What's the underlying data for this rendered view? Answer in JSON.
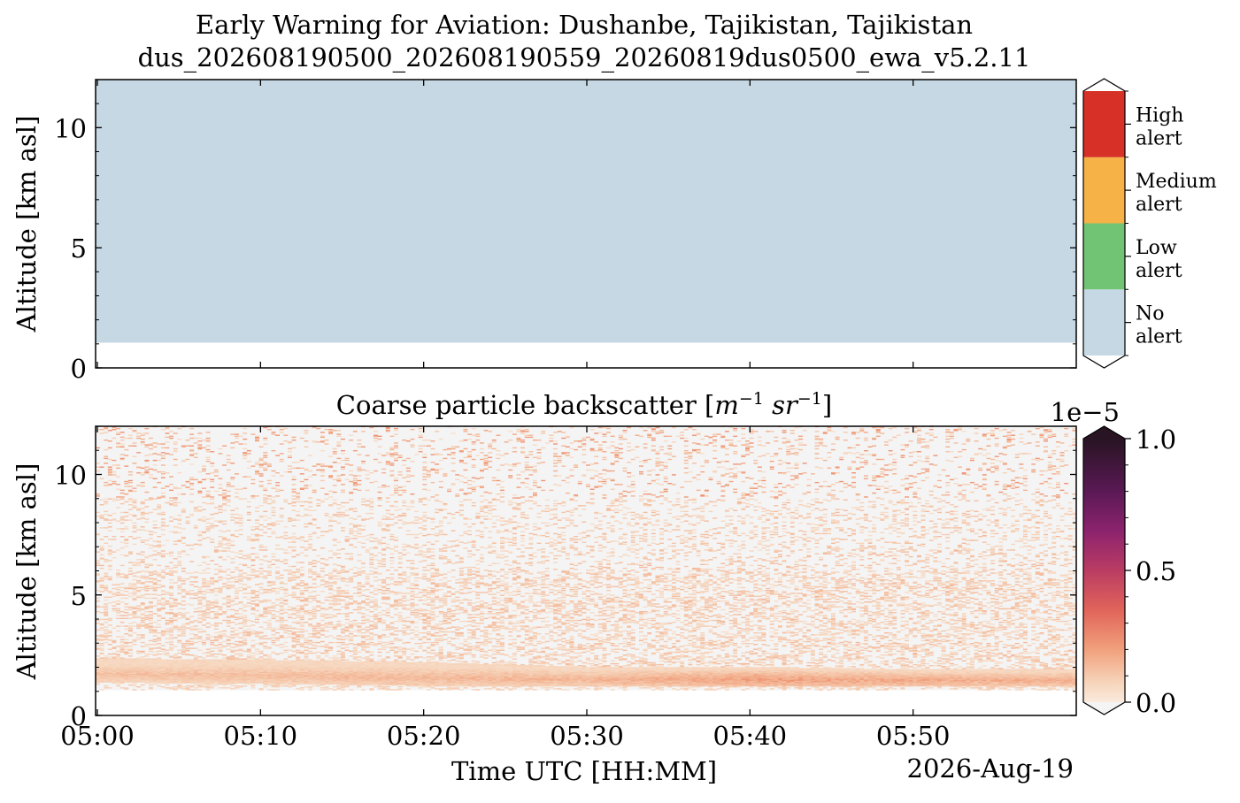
{
  "title_line1": "Early Warning for Aviation: Dushanbe, Tajikistan, Tajikistan",
  "title_line2": "dus_202608190500_202608190559_20260819dus0500_ewa_v5.2.11",
  "colors": {
    "no_alert": "#c5d8e3",
    "low_alert": "#71c473",
    "medium_alert": "#f6b247",
    "high_alert": "#d73027",
    "background_bins": "#f4f4f4"
  },
  "chart_data": [
    {
      "type": "heatmap",
      "title": "",
      "xlabel": "",
      "ylabel": "Altitude [km asl]",
      "xlim": [
        "05:00",
        "05:59"
      ],
      "ylim": [
        0,
        12
      ],
      "y_ticks": [
        0,
        5,
        10
      ],
      "x_ticks": [
        "05:00",
        "05:10",
        "05:20",
        "05:30",
        "05:40",
        "05:50"
      ],
      "fill_region": {
        "class": "No alert",
        "altitude_from_km": 1.05,
        "altitude_to_km": 12
      },
      "colorbar": {
        "categories": [
          "No\nalert",
          "Low\nalert",
          "Medium\nalert",
          "High\nalert"
        ],
        "lines": [
          [
            "No",
            "alert"
          ],
          [
            "Low",
            "alert"
          ],
          [
            "Medium",
            "alert"
          ],
          [
            "High",
            "alert"
          ]
        ]
      }
    },
    {
      "type": "heatmap",
      "title": "Coarse particle backscatter [m",
      "title_unit": {
        "m": "m",
        "m_exp": "−1",
        "sr": "sr",
        "sr_exp": "−1"
      },
      "xlabel": "Time UTC [HH:MM]",
      "ylabel": "Altitude [km asl]",
      "date_label": "2026-Aug-19",
      "xlim": [
        "05:00",
        "05:59"
      ],
      "ylim": [
        0,
        12
      ],
      "y_ticks": [
        0,
        5,
        10
      ],
      "x_ticks": [
        "05:00",
        "05:10",
        "05:20",
        "05:30",
        "05:40",
        "05:50"
      ],
      "colorbar": {
        "min": 0.0,
        "max": 1.0,
        "ticks": [
          "0.0",
          "0.5",
          "1.0"
        ],
        "offset_label": "1e−5"
      },
      "layer": {
        "description_values": [
          {
            "time_min": 0,
            "bottom_km": 1.35,
            "top_km": 2.35,
            "peak": 0.12
          },
          {
            "time_min": 10,
            "bottom_km": 1.3,
            "top_km": 2.3,
            "peak": 0.13
          },
          {
            "time_min": 20,
            "bottom_km": 1.2,
            "top_km": 2.2,
            "peak": 0.14
          },
          {
            "time_min": 30,
            "bottom_km": 1.2,
            "top_km": 2.0,
            "peak": 0.15
          },
          {
            "time_min": 40,
            "bottom_km": 1.2,
            "top_km": 2.0,
            "peak": 0.2
          },
          {
            "time_min": 50,
            "bottom_km": 1.2,
            "top_km": 1.9,
            "peak": 0.18
          },
          {
            "time_min": 59,
            "bottom_km": 1.2,
            "top_km": 1.9,
            "peak": 0.16
          }
        ],
        "data_floor_km": 1.05
      }
    }
  ]
}
